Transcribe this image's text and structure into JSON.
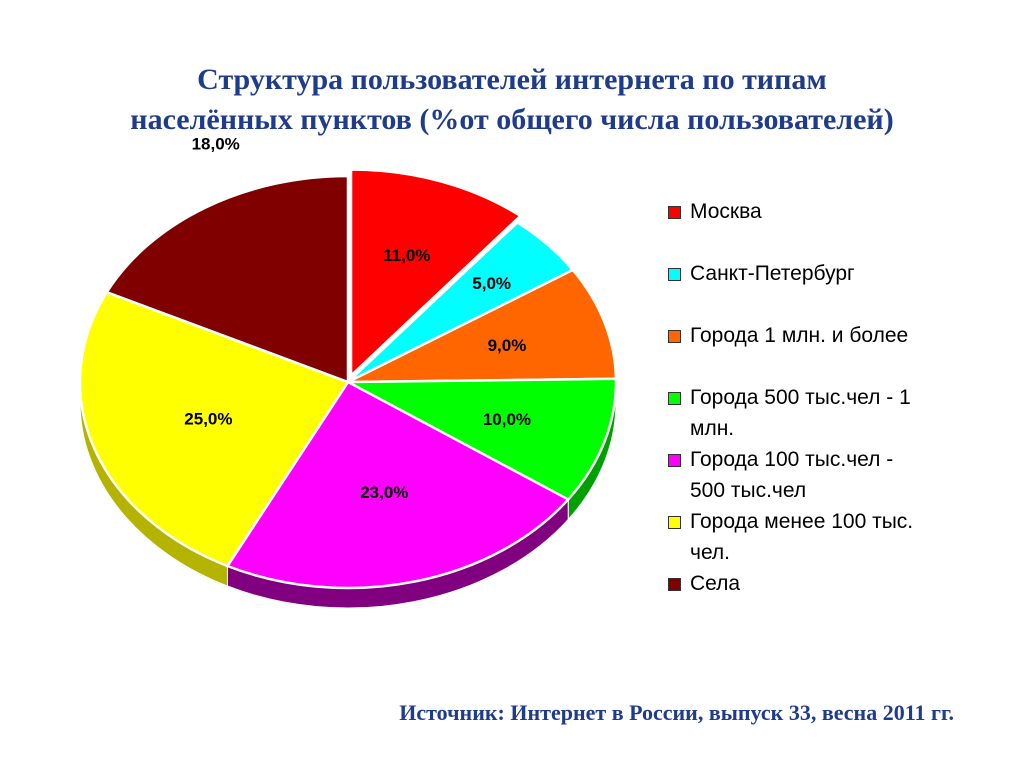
{
  "title": {
    "line1": "Структура пользователей интернета по типам",
    "line2": "населённых пунктов (%от общего числа пользователей)"
  },
  "source": "Источник: Интернет в России, выпуск 33, весна 2011 гг.",
  "chart_data": {
    "type": "pie",
    "title": "Структура пользователей интернета по типам населённых пунктов (%от общего числа пользователей)",
    "legend_position": "right",
    "slices": [
      {
        "name": "Москва",
        "legend_lines": [
          "Москва"
        ],
        "value": 11.0,
        "label": "11,0%",
        "color": "#ff0000",
        "side": "#b30000",
        "exploded": true
      },
      {
        "name": "Санкт-Петербург",
        "legend_lines": [
          "Санкт-Петербург"
        ],
        "value": 5.0,
        "label": "5,0%",
        "color": "#00ffff",
        "side": "#00a0a0"
      },
      {
        "name": "Города 1 млн. и более",
        "legend_lines": [
          "Города 1 млн. и более"
        ],
        "value": 9.0,
        "label": "9,0%",
        "color": "#ff6600",
        "side": "#b34700"
      },
      {
        "name": "Города 500 тыс.чел - 1 млн.",
        "legend_lines": [
          "Города 500 тыс.чел - 1",
          "млн."
        ],
        "value": 10.0,
        "label": "10,0%",
        "color": "#00ff00",
        "side": "#00a000"
      },
      {
        "name": "Города 100 тыс.чел - 500 тыс.чел",
        "legend_lines": [
          "Города 100 тыс.чел -",
          "500 тыс.чел"
        ],
        "value": 23.0,
        "label": "23,0%",
        "color": "#ff00ff",
        "side": "#800080"
      },
      {
        "name": "Города менее 100 тыс. чел.",
        "legend_lines": [
          "Города менее 100 тыс.",
          "чел."
        ],
        "value": 25.0,
        "label": "25,0%",
        "color": "#ffff00",
        "side": "#b3b300"
      },
      {
        "name": "Села",
        "legend_lines": [
          "Села"
        ],
        "value": 18.0,
        "label": "18,0%",
        "color": "#800000",
        "side": "#4d0000"
      }
    ]
  }
}
